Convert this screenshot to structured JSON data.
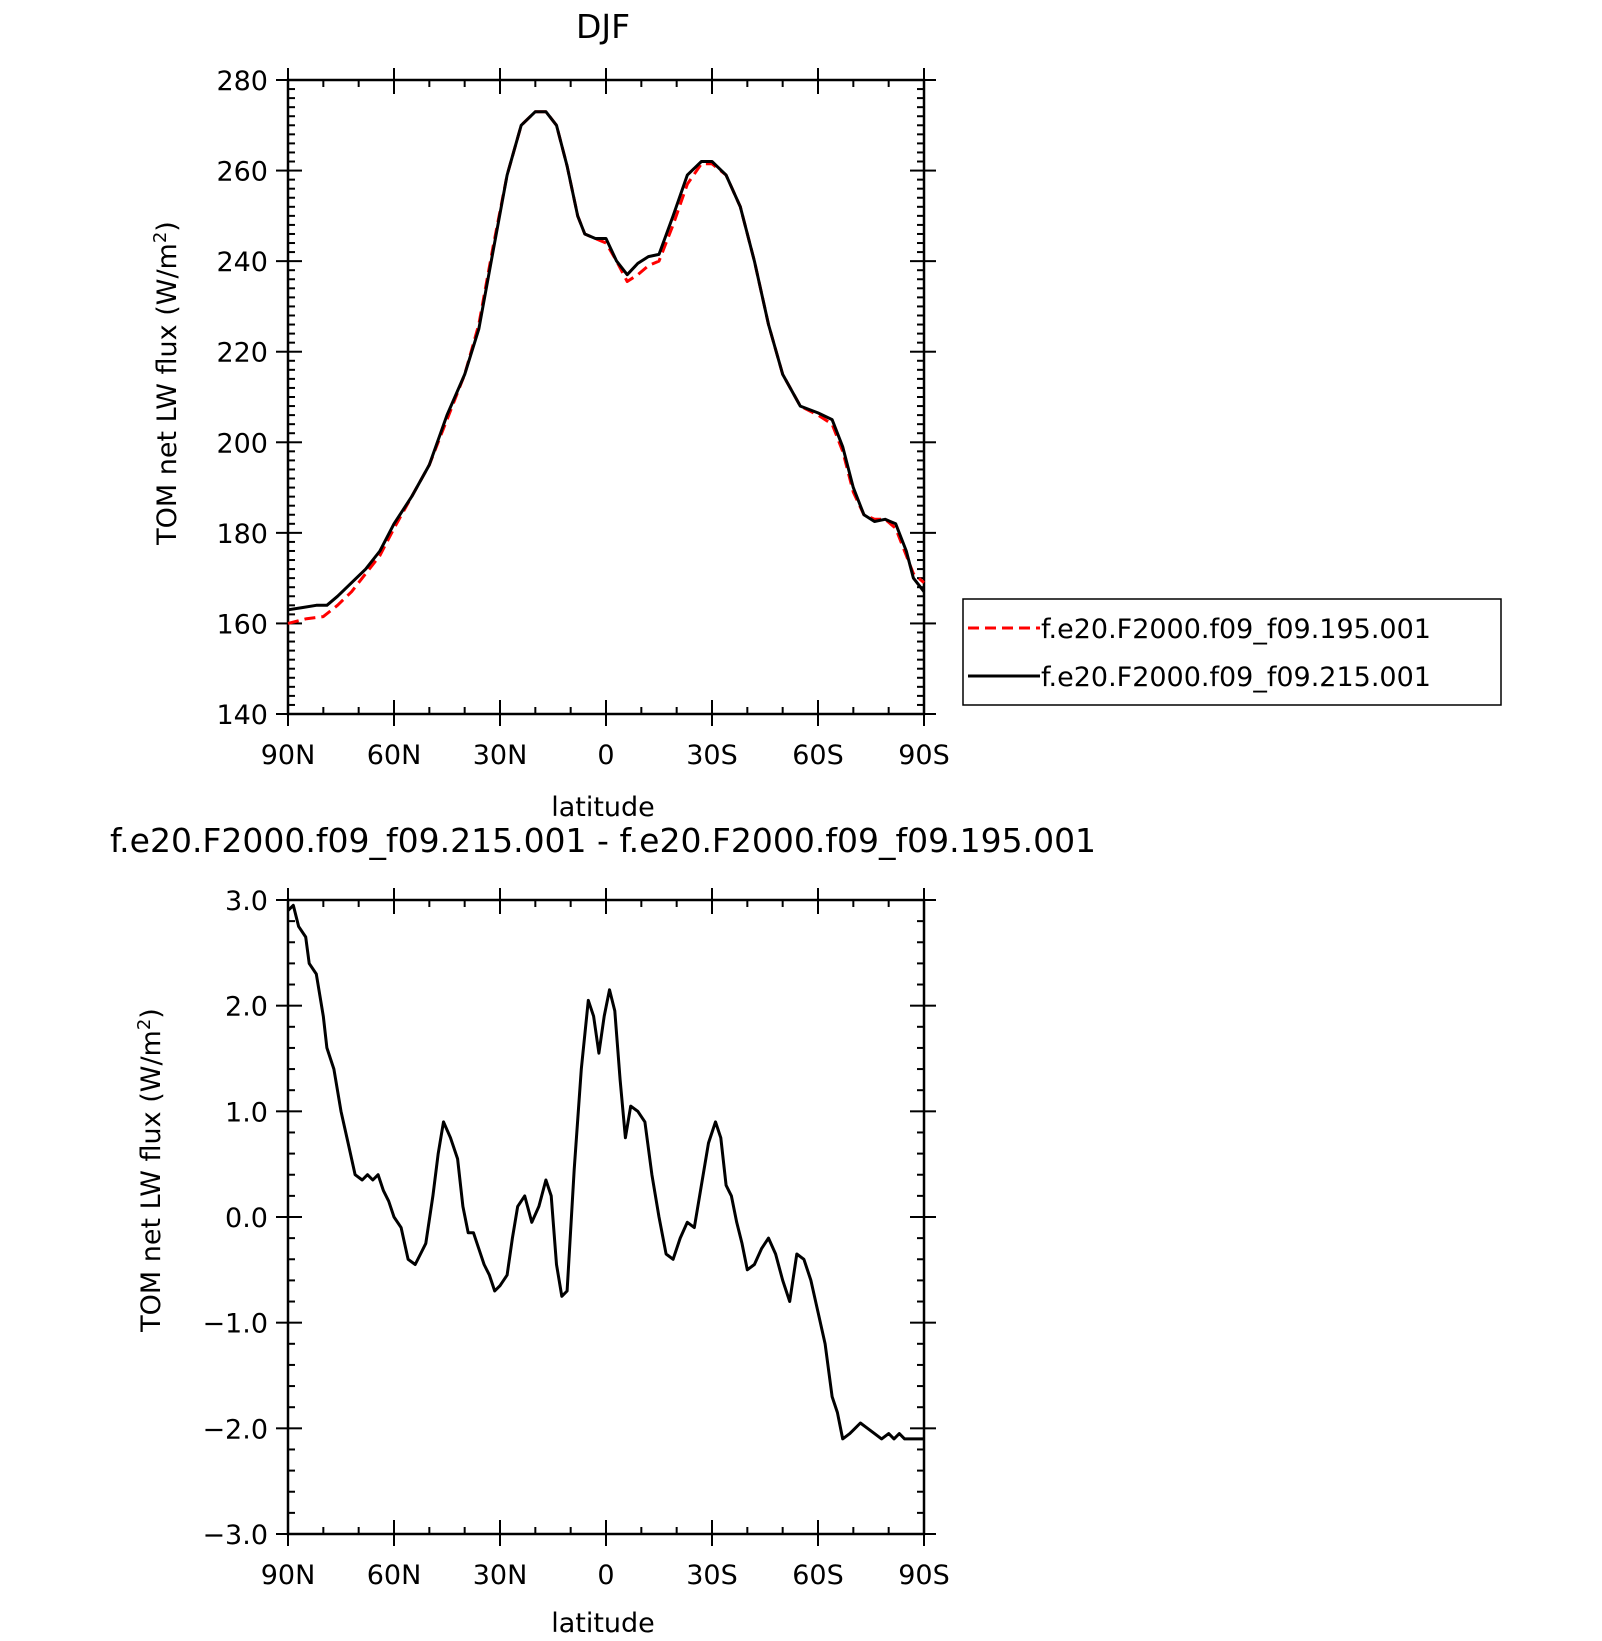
{
  "chart_data": [
    {
      "type": "line",
      "title": "DJF",
      "xlabel": "latitude",
      "ylabel": "TOM net LW flux (W/m",
      "ylabel_superscript": "2",
      "ylabel_close": ")",
      "xlim": [
        90,
        -90
      ],
      "ylim": [
        140,
        280
      ],
      "xtick_values": [
        90,
        60,
        30,
        0,
        -30,
        -60,
        -90
      ],
      "xtick_labels": [
        "90N",
        "60N",
        "30N",
        "0",
        "30S",
        "60S",
        "90S"
      ],
      "ytick_values": [
        140,
        160,
        180,
        200,
        220,
        240,
        260,
        280
      ],
      "ytick_labels": [
        "140",
        "160",
        "180",
        "200",
        "220",
        "240",
        "260",
        "280"
      ],
      "legend": "right",
      "grid": false,
      "series": [
        {
          "name": "f.e20.F2000.f09_f09.195.001",
          "color": "#ff0000",
          "style": "dashed",
          "x": [
            90,
            85,
            80,
            76,
            72,
            68,
            64,
            60,
            55,
            50,
            45,
            40,
            36,
            32,
            28,
            24,
            20,
            17,
            14,
            11,
            8,
            6,
            3,
            0,
            -3,
            -6,
            -9,
            -12,
            -15,
            -19,
            -23,
            -27,
            -30,
            -34,
            -38,
            -42,
            -46,
            -50,
            -55,
            -60,
            -64,
            -67,
            -70,
            -73,
            -76,
            -79,
            -82,
            -85,
            -87,
            -90
          ],
          "y": [
            160,
            161,
            161.5,
            164,
            167,
            171,
            175,
            181,
            188,
            195,
            205,
            215,
            226,
            243,
            259,
            270,
            273,
            273,
            270,
            261,
            250,
            246,
            245,
            244,
            240,
            235.5,
            237,
            239,
            240,
            248,
            257,
            261.5,
            261.5,
            259,
            252,
            240,
            226,
            215,
            208,
            206,
            204,
            198,
            189,
            184,
            183,
            183,
            181,
            175,
            171,
            169
          ]
        },
        {
          "name": "f.e20.F2000.f09_f09.215.001",
          "color": "#000000",
          "style": "solid",
          "x": [
            90,
            86,
            82,
            79,
            76,
            72,
            68,
            64,
            60,
            55,
            50,
            45,
            40,
            36,
            32,
            28,
            24,
            20,
            17,
            14,
            11,
            8,
            6,
            3,
            0,
            -3,
            -6,
            -9,
            -12,
            -15,
            -19,
            -23,
            -27,
            -30,
            -34,
            -38,
            -42,
            -46,
            -50,
            -55,
            -60,
            -64,
            -67,
            -70,
            -73,
            -76,
            -79,
            -82,
            -85,
            -87,
            -90
          ],
          "y": [
            163,
            163.5,
            164,
            164,
            166,
            169,
            172,
            176,
            182,
            188,
            195,
            206,
            215,
            225,
            242,
            259,
            270,
            273,
            273,
            270,
            261,
            250,
            246,
            245,
            245,
            240,
            237,
            239.5,
            241,
            241.5,
            250,
            259,
            262,
            262,
            259,
            252,
            240,
            226,
            215,
            208,
            206.5,
            205,
            199,
            190,
            184,
            182.5,
            183,
            182,
            176,
            170,
            167
          ]
        }
      ]
    },
    {
      "type": "line",
      "title": "f.e20.F2000.f09_f09.215.001 - f.e20.F2000.f09_f09.195.001",
      "xlabel": "latitude",
      "ylabel": "TOM net LW flux (W/m",
      "ylabel_superscript": "2",
      "ylabel_close": ")",
      "xlim": [
        90,
        -90
      ],
      "ylim": [
        -3,
        3
      ],
      "xtick_values": [
        90,
        60,
        30,
        0,
        -30,
        -60,
        -90
      ],
      "xtick_labels": [
        "90N",
        "60N",
        "30N",
        "0",
        "30S",
        "60S",
        "90S"
      ],
      "ytick_values": [
        3,
        2,
        1,
        0,
        -1,
        -2,
        -3
      ],
      "ytick_labels": [
        "3.0",
        "2.0",
        "1.0",
        "0.0",
        "−1.0",
        "−2.0",
        "−3.0"
      ],
      "grid": false,
      "series": [
        {
          "color": "#000000",
          "style": "solid",
          "x": [
            90,
            88.5,
            87,
            85,
            84,
            82,
            80,
            79,
            77,
            75,
            73,
            71,
            69,
            67.5,
            66,
            64.5,
            63,
            61.5,
            60,
            58,
            56,
            54,
            52.5,
            51,
            49,
            47.5,
            46,
            44,
            42,
            40.5,
            39,
            37.5,
            36,
            34.5,
            33,
            31.5,
            30,
            28,
            26.5,
            25,
            23,
            21,
            19,
            17,
            15.5,
            14,
            12.5,
            11,
            9,
            7,
            5,
            3.5,
            2,
            0.5,
            -1,
            -2.5,
            -4,
            -5.5,
            -7,
            -9,
            -11,
            -13,
            -15,
            -17,
            -19,
            -21,
            -23,
            -25,
            -27,
            -29,
            -31,
            -32.5,
            -34,
            -35.5,
            -37,
            -38.5,
            -40,
            -42,
            -44,
            -46,
            -48,
            -50,
            -52,
            -54,
            -56,
            -58,
            -60,
            -62,
            -64,
            -65.5,
            -67,
            -69,
            -70.5,
            -72,
            -74,
            -76,
            -78,
            -80,
            -81.5,
            -83,
            -84.5,
            -86,
            -88,
            -90
          ],
          "y": [
            2.9,
            2.95,
            2.75,
            2.65,
            2.4,
            2.3,
            1.9,
            1.6,
            1.4,
            1.0,
            0.7,
            0.4,
            0.35,
            0.4,
            0.35,
            0.4,
            0.25,
            0.15,
            0.0,
            -0.1,
            -0.4,
            -0.45,
            -0.35,
            -0.25,
            0.2,
            0.6,
            0.9,
            0.75,
            0.55,
            0.1,
            -0.15,
            -0.15,
            -0.3,
            -0.45,
            -0.55,
            -0.7,
            -0.65,
            -0.55,
            -0.2,
            0.1,
            0.2,
            -0.05,
            0.1,
            0.35,
            0.2,
            -0.45,
            -0.75,
            -0.7,
            0.45,
            1.4,
            2.05,
            1.9,
            1.55,
            1.9,
            2.15,
            1.95,
            1.3,
            0.75,
            1.05,
            1.0,
            0.9,
            0.4,
            0.0,
            -0.35,
            -0.4,
            -0.2,
            -0.05,
            -0.1,
            0.3,
            0.7,
            0.9,
            0.75,
            0.3,
            0.2,
            -0.05,
            -0.25,
            -0.5,
            -0.45,
            -0.3,
            -0.2,
            -0.35,
            -0.6,
            -0.8,
            -0.35,
            -0.4,
            -0.6,
            -0.9,
            -1.2,
            -1.7,
            -1.85,
            -2.1,
            -2.05,
            -2.0,
            -1.95,
            -2.0,
            -2.05,
            -2.1,
            -2.05,
            -2.1,
            -2.05,
            -2.1,
            -2.1,
            -2.1,
            -2.1
          ]
        }
      ]
    }
  ]
}
